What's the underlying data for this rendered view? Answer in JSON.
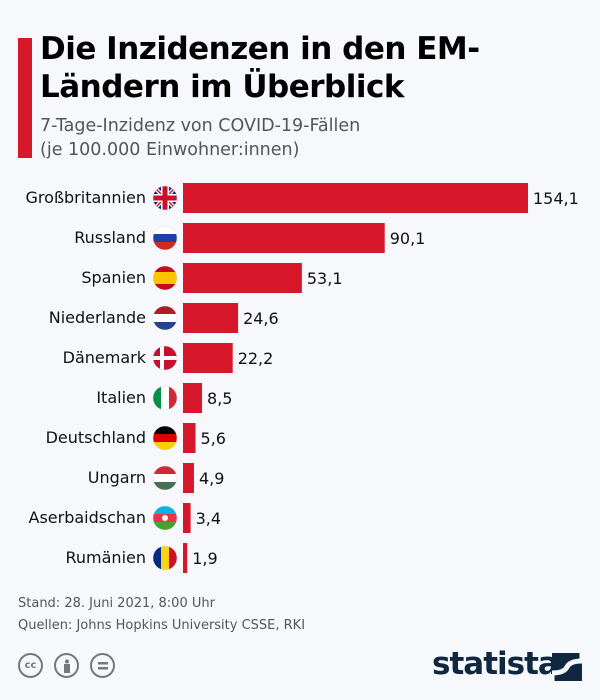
{
  "header": {
    "title": "Die Inzidenzen in den EM-Ländern im Überblick",
    "subtitle_line1": "7-Tage-Inzidenz von COVID-19-Fällen",
    "subtitle_line2": "(je 100.000 Einwohner:innen)"
  },
  "chart_data": {
    "type": "bar",
    "orientation": "horizontal",
    "categories": [
      "Großbritannien",
      "Russland",
      "Spanien",
      "Niederlande",
      "Dänemark",
      "Italien",
      "Deutschland",
      "Ungarn",
      "Aserbaidschan",
      "Rumänien"
    ],
    "values": [
      154.1,
      90.1,
      53.1,
      24.6,
      22.2,
      8.5,
      5.6,
      4.9,
      3.4,
      1.9
    ],
    "data_labels": [
      "154,1",
      "90,1",
      "53,1",
      "24,6",
      "22,2",
      "8,5",
      "5,6",
      "4,9",
      "3,4",
      "1,9"
    ],
    "flags": [
      "uk",
      "russia",
      "spain",
      "netherlands",
      "denmark",
      "italy",
      "germany",
      "hungary",
      "azerbaijan",
      "romania"
    ],
    "bar_color": "#d7182a",
    "grid": false,
    "xlim": [
      0,
      154.1
    ]
  },
  "footer": {
    "stand": "Stand: 28. Juni 2021, 8:00 Uhr",
    "sources": "Quellen: Johns Hopkins University CSSE, RKI",
    "cc_label": "cc",
    "logo": "statista"
  }
}
